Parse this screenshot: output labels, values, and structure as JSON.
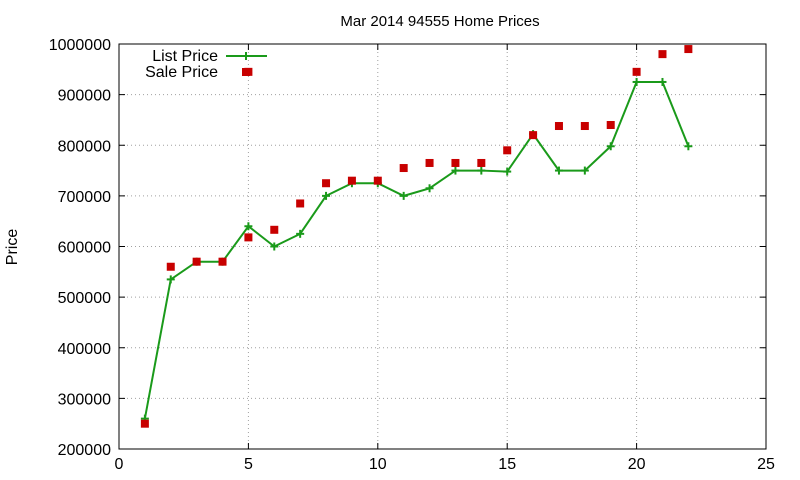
{
  "chart_data": {
    "type": "line",
    "title": "Mar 2014 94555 Home Prices",
    "xlabel": "",
    "ylabel": "Price",
    "xlim": [
      0,
      25
    ],
    "ylim": [
      200000,
      1000000
    ],
    "x_ticks": [
      0,
      5,
      10,
      15,
      20,
      25
    ],
    "y_ticks": [
      200000,
      300000,
      400000,
      500000,
      600000,
      700000,
      800000,
      900000,
      1000000
    ],
    "grid": true,
    "legend_position": "top-left",
    "colors": {
      "list_price": "#1a9a1a",
      "sale_price": "#c80000",
      "grid": "#a0a0a0",
      "axis": "#000000"
    },
    "series": [
      {
        "name": "List Price",
        "style": "line-with-plus-markers",
        "x": [
          1,
          2,
          3,
          4,
          5,
          6,
          7,
          8,
          9,
          10,
          11,
          12,
          13,
          14,
          15,
          16,
          17,
          18,
          19,
          20,
          21,
          22
        ],
        "y": [
          260000,
          535000,
          570000,
          570000,
          640000,
          600000,
          625000,
          700000,
          725000,
          725000,
          700000,
          715000,
          750000,
          750000,
          748000,
          822000,
          750000,
          750000,
          798000,
          925000,
          925000,
          798000
        ]
      },
      {
        "name": "Sale Price",
        "style": "square-markers",
        "x": [
          1,
          2,
          3,
          4,
          5,
          5,
          6,
          7,
          8,
          9,
          10,
          11,
          12,
          13,
          14,
          15,
          16,
          17,
          18,
          19,
          20,
          21,
          22
        ],
        "y": [
          250000,
          560000,
          570000,
          570000,
          618000,
          945000,
          633000,
          685000,
          725000,
          730000,
          730000,
          755000,
          765000,
          765000,
          765000,
          790000,
          820000,
          838000,
          838000,
          840000,
          945000,
          980000,
          990000
        ]
      }
    ]
  }
}
